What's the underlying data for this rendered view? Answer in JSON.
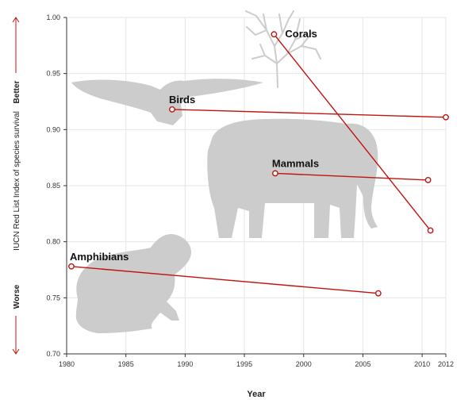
{
  "chart_data": {
    "type": "line",
    "xlabel": "Year",
    "ylabel": "IUCN Red List Index of species survival",
    "y_better_label": "Better",
    "y_worse_label": "Worse",
    "xlim": [
      1980,
      2012
    ],
    "ylim": [
      0.7,
      1.0
    ],
    "x_ticks": [
      "1980",
      "1985",
      "1990",
      "1995",
      "2000",
      "2005",
      "2010",
      "2012"
    ],
    "y_ticks": [
      "0.70",
      "0.75",
      "0.80",
      "0.85",
      "0.90",
      "0.95",
      "1.00"
    ],
    "grid": true,
    "line_color": "#c0140f",
    "silhouette_color": "#cccccc",
    "series": [
      {
        "name": "Corals",
        "x": [
          1997.5,
          2010.7
        ],
        "y": [
          0.985,
          0.81
        ]
      },
      {
        "name": "Birds",
        "x": [
          1988.9,
          2012.0
        ],
        "y": [
          0.918,
          0.911
        ]
      },
      {
        "name": "Mammals",
        "x": [
          1997.6,
          2010.5
        ],
        "y": [
          0.861,
          0.855
        ]
      },
      {
        "name": "Amphibians",
        "x": [
          1980.4,
          2006.3
        ],
        "y": [
          0.778,
          0.754
        ]
      }
    ]
  }
}
